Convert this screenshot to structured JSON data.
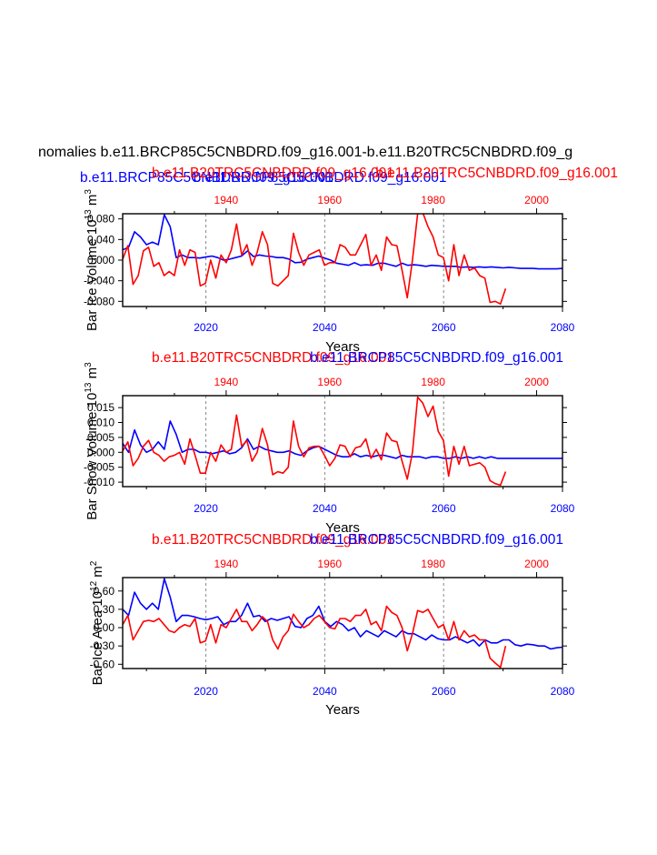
{
  "page_title": "nomalies b.e11.BRCP85C5CNBDRD.f09_g16.001-b.e11.B20TRC5CNBDRD.f09_g",
  "colors": {
    "blue_series": "#0000ff",
    "red_series": "#ff0000",
    "axis": "#000000",
    "grid": "#888888"
  },
  "chart_data": [
    {
      "type": "line",
      "ylabel": "Bar Ice Volume 10",
      "ylabel_exp": "13",
      "ylabel_unit": " m",
      "ylabel_unit_exp": "3",
      "xlabel": "Years",
      "titles": [
        {
          "text": "b.e11.BRCP85C5CNBDRD.f09_g16.001",
          "color": "#0000ff",
          "anchor": "left"
        },
        {
          "text": "b.e11.B20TRC5CNBDRD.f09_g16.001",
          "color": "#ff0000",
          "anchor": "center-left"
        },
        {
          "text": "b.e11.BRCP85C5CNBDRD.f09_g16.001",
          "color": "#0000ff",
          "anchor": "center-right"
        },
        {
          "text": "b.e11.B20TRC5CNBDRD.f09_g16.001",
          "color": "#ff0000",
          "anchor": "right"
        }
      ],
      "bottom_axis": {
        "min": 2006,
        "max": 2080,
        "ticks": [
          "2020",
          "2040",
          "2060",
          "2080"
        ],
        "tick_values": [
          2020,
          2040,
          2060,
          2080
        ]
      },
      "top_axis": {
        "min": 1920,
        "max": 2005,
        "ticks": [
          "1940",
          "1960",
          "1980",
          "2000"
        ],
        "tick_values": [
          1940,
          1960,
          1980,
          2000
        ]
      },
      "ylim": [
        -0.09,
        0.09
      ],
      "yticks": [
        "0.080",
        "0.040",
        "0.000",
        "-0.040",
        "-0.080"
      ],
      "ytick_values": [
        0.08,
        0.04,
        0.0,
        -0.04,
        -0.08
      ],
      "gridlines_bottom_years": [
        2020,
        2040,
        2060
      ],
      "series": [
        {
          "name": "b.e11.BRCP85C5CNBDRD.f09_g16.001",
          "color": "#0000ff",
          "x_start": 2006,
          "values": [
            0.02,
            0.025,
            0.055,
            0.045,
            0.03,
            0.035,
            0.03,
            0.088,
            0.065,
            0.005,
            0.01,
            0.005,
            0.005,
            0.004,
            0.006,
            0.008,
            0.005,
            0.0,
            0.002,
            0.005,
            0.008,
            0.018,
            0.007,
            0.01,
            0.008,
            0.007,
            0.005,
            0.005,
            0.002,
            -0.005,
            -0.004,
            0.002,
            0.005,
            0.008,
            0.004,
            0.0,
            -0.006,
            -0.008,
            -0.01,
            -0.005,
            -0.01,
            -0.009,
            -0.01,
            -0.006,
            -0.006,
            -0.009,
            -0.012,
            -0.006,
            -0.01,
            -0.009,
            -0.01,
            -0.012,
            -0.01,
            -0.011,
            -0.012,
            -0.012,
            -0.012,
            -0.014,
            -0.013,
            -0.014,
            -0.013,
            -0.014,
            -0.013,
            -0.014,
            -0.015,
            -0.014,
            -0.015,
            -0.016,
            -0.016,
            -0.016,
            -0.017,
            -0.017,
            -0.017,
            -0.017,
            -0.016
          ]
        },
        {
          "name": "b.e11.B20TRC5CNBDRD.f09_g16.001",
          "color": "#ff0000",
          "x_start": 1920,
          "values": [
            0.002,
            0.028,
            -0.047,
            -0.03,
            0.018,
            0.025,
            -0.012,
            -0.005,
            -0.03,
            -0.022,
            -0.03,
            0.02,
            -0.01,
            0.02,
            0.015,
            -0.05,
            -0.045,
            0.0,
            -0.035,
            0.01,
            -0.005,
            0.02,
            0.07,
            0.01,
            0.03,
            -0.01,
            0.015,
            0.055,
            0.03,
            -0.045,
            -0.05,
            -0.04,
            -0.03,
            0.052,
            0.015,
            -0.01,
            0.01,
            0.015,
            0.02,
            -0.01,
            -0.005,
            -0.005,
            0.03,
            0.025,
            0.01,
            0.01,
            0.03,
            0.05,
            -0.01,
            0.01,
            -0.02,
            0.045,
            0.03,
            0.028,
            -0.02,
            -0.073,
            0.0,
            0.09,
            0.092,
            0.065,
            0.045,
            0.01,
            0.005,
            -0.04,
            0.03,
            -0.03,
            0.01,
            -0.02,
            -0.015,
            -0.03,
            -0.035,
            -0.082,
            -0.08,
            -0.085,
            -0.055
          ]
        }
      ]
    },
    {
      "type": "line",
      "ylabel": "Bar Snow Volume 10",
      "ylabel_exp": "13",
      "ylabel_unit": " m",
      "ylabel_unit_exp": "3",
      "xlabel": "Years",
      "titles": [
        {
          "text": "b.e11.B20TRC5CNBDRD.f09_g16.001",
          "color": "#ff0000",
          "anchor": "left"
        },
        {
          "text": "b.e11.BRCP85C5CNBDRD.f09_g16.001",
          "color": "#0000ff",
          "anchor": "right"
        }
      ],
      "bottom_axis": {
        "min": 2006,
        "max": 2080,
        "ticks": [
          "2020",
          "2040",
          "2060",
          "2080"
        ],
        "tick_values": [
          2020,
          2040,
          2060,
          2080
        ]
      },
      "top_axis": {
        "min": 1920,
        "max": 2005,
        "ticks": [
          "1940",
          "1960",
          "1980",
          "2000"
        ],
        "tick_values": [
          1940,
          1960,
          1980,
          2000
        ]
      },
      "ylim": [
        -0.0115,
        0.019
      ],
      "yticks": [
        "0.015",
        "0.010",
        "0.005",
        "0.000",
        "-0.005",
        "-0.010"
      ],
      "ytick_values": [
        0.015,
        0.01,
        0.005,
        0.0,
        -0.005,
        -0.01
      ],
      "gridlines_bottom_years": [
        2020,
        2040,
        2060
      ],
      "series": [
        {
          "name": "b.e11.BRCP85C5CNBDRD.f09_g16.001",
          "color": "#0000ff",
          "x_start": 2006,
          "values": [
            0.003,
            0.0,
            0.0075,
            0.0025,
            0.0,
            0.001,
            0.0035,
            0.001,
            0.0105,
            0.006,
            0.0,
            0.001,
            0.001,
            0.0,
            0.0,
            -0.0005,
            0.0,
            0.0005,
            -0.0005,
            0.0,
            0.0015,
            0.0045,
            0.001,
            0.002,
            0.001,
            0.0005,
            0.0,
            0.0,
            0.0005,
            -0.0005,
            -0.001,
            0.0005,
            0.0015,
            0.002,
            0.001,
            0.0,
            -0.001,
            -0.0015,
            -0.0015,
            -0.0005,
            -0.0015,
            -0.001,
            -0.0015,
            -0.001,
            -0.001,
            -0.0015,
            -0.002,
            -0.001,
            -0.0015,
            -0.0015,
            -0.0015,
            -0.002,
            -0.0015,
            -0.0015,
            -0.002,
            -0.002,
            -0.0015,
            -0.002,
            -0.0015,
            -0.002,
            -0.0015,
            -0.002,
            -0.0015,
            -0.002,
            -0.002,
            -0.002,
            -0.002,
            -0.002,
            -0.002,
            -0.002,
            -0.002,
            -0.002,
            -0.002,
            -0.002,
            -0.002
          ]
        },
        {
          "name": "b.e11.B20TRC5CNBDRD.f09_g16.001",
          "color": "#ff0000",
          "x_start": 1920,
          "values": [
            0.0005,
            0.0035,
            -0.0045,
            -0.002,
            0.002,
            0.004,
            0.0,
            -0.001,
            -0.003,
            -0.0015,
            -0.001,
            0.0,
            -0.004,
            0.0045,
            -0.001,
            -0.007,
            -0.007,
            0.0,
            -0.003,
            0.0025,
            0.0,
            0.001,
            0.0125,
            0.002,
            0.004,
            -0.003,
            0.0,
            0.008,
            0.0025,
            -0.0075,
            -0.0065,
            -0.007,
            -0.005,
            0.0105,
            0.002,
            -0.0015,
            0.0015,
            0.002,
            0.002,
            -0.001,
            -0.0045,
            -0.002,
            0.0025,
            0.002,
            -0.0015,
            0.0015,
            0.002,
            0.0045,
            -0.002,
            0.001,
            -0.0025,
            0.0065,
            0.004,
            0.0035,
            -0.003,
            -0.009,
            0.0,
            0.0185,
            0.0165,
            0.012,
            0.0155,
            0.007,
            0.004,
            -0.008,
            0.002,
            -0.004,
            0.002,
            -0.0045,
            -0.004,
            -0.0035,
            -0.005,
            -0.0095,
            -0.0105,
            -0.011,
            -0.0065
          ]
        }
      ]
    },
    {
      "type": "line",
      "ylabel": "Bar Ice Area 10",
      "ylabel_exp": "12",
      "ylabel_unit": " m",
      "ylabel_unit_exp": "2",
      "xlabel": "Years",
      "titles": [
        {
          "text": "b.e11.B20TRC5CNBDRD.f09_g16.001",
          "color": "#ff0000",
          "anchor": "left"
        },
        {
          "text": "b.e11.BRCP85C5CNBDRD.f09_g16.001",
          "color": "#0000ff",
          "anchor": "right"
        }
      ],
      "bottom_axis": {
        "min": 2006,
        "max": 2080,
        "ticks": [
          "2020",
          "2040",
          "2060",
          "2080"
        ],
        "tick_values": [
          2020,
          2040,
          2060,
          2080
        ]
      },
      "top_axis": {
        "min": 1920,
        "max": 2005,
        "ticks": [
          "1940",
          "1960",
          "1980",
          "2000"
        ],
        "tick_values": [
          1940,
          1960,
          1980,
          2000
        ]
      },
      "ylim": [
        -0.67,
        0.82
      ],
      "yticks": [
        "0.60",
        "0.30",
        "0.00",
        "-0.30",
        "-0.60"
      ],
      "ytick_values": [
        0.6,
        0.3,
        0.0,
        -0.3,
        -0.6
      ],
      "gridlines_bottom_years": [
        2020,
        2040,
        2060
      ],
      "series": [
        {
          "name": "b.e11.BRCP85C5CNBDRD.f09_g16.001",
          "color": "#0000ff",
          "x_start": 2006,
          "values": [
            0.3,
            0.2,
            0.58,
            0.4,
            0.3,
            0.4,
            0.3,
            0.8,
            0.5,
            0.1,
            0.2,
            0.2,
            0.18,
            0.15,
            0.13,
            0.15,
            0.18,
            0.05,
            0.1,
            0.1,
            0.2,
            0.4,
            0.18,
            0.2,
            0.1,
            0.15,
            0.12,
            0.15,
            0.18,
            0.02,
            0.0,
            0.15,
            0.2,
            0.35,
            0.1,
            0.02,
            0.1,
            0.05,
            -0.05,
            0.0,
            -0.15,
            -0.05,
            -0.1,
            -0.15,
            -0.05,
            -0.1,
            -0.15,
            -0.05,
            -0.1,
            -0.1,
            -0.15,
            -0.2,
            -0.12,
            -0.18,
            -0.2,
            -0.2,
            -0.15,
            -0.2,
            -0.25,
            -0.2,
            -0.3,
            -0.2,
            -0.25,
            -0.25,
            -0.2,
            -0.2,
            -0.28,
            -0.3,
            -0.27,
            -0.28,
            -0.3,
            -0.3,
            -0.35,
            -0.33,
            -0.32
          ]
        },
        {
          "name": "b.e11.B20TRC5CNBDRD.f09_g16.001",
          "color": "#ff0000",
          "x_start": 1920,
          "values": [
            0.05,
            0.2,
            -0.2,
            -0.05,
            0.1,
            0.12,
            0.1,
            0.15,
            0.05,
            -0.05,
            -0.08,
            0.0,
            0.05,
            0.02,
            0.15,
            -0.25,
            -0.22,
            0.05,
            -0.25,
            0.05,
            0.0,
            0.15,
            0.3,
            0.1,
            0.1,
            -0.05,
            0.05,
            0.18,
            0.1,
            -0.2,
            -0.35,
            -0.15,
            -0.05,
            0.22,
            0.1,
            0.0,
            0.05,
            0.15,
            0.2,
            0.1,
            0.0,
            -0.02,
            0.15,
            0.15,
            0.1,
            0.2,
            0.2,
            0.3,
            0.05,
            0.1,
            -0.05,
            0.35,
            0.25,
            0.2,
            0.0,
            -0.38,
            -0.1,
            0.28,
            0.25,
            0.3,
            0.15,
            0.0,
            0.05,
            -0.2,
            0.1,
            -0.2,
            -0.05,
            -0.15,
            -0.12,
            -0.2,
            -0.2,
            -0.5,
            -0.58,
            -0.65,
            -0.3
          ]
        }
      ]
    }
  ]
}
